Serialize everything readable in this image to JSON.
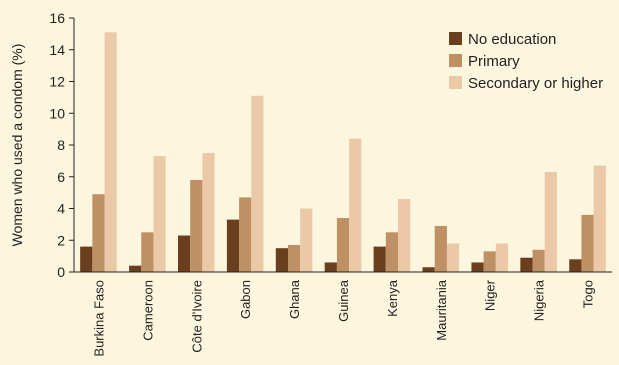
{
  "chart_data": {
    "type": "bar",
    "title": "",
    "xlabel": "",
    "ylabel": "Women who used a condom (%)",
    "ylim": [
      0,
      16
    ],
    "yticks": [
      0,
      2,
      4,
      6,
      8,
      10,
      12,
      14,
      16
    ],
    "grid": false,
    "legend_position": "top-right",
    "categories": [
      "Burkina Faso",
      "Cameroon",
      "Côte d'Ivoire",
      "Gabon",
      "Ghana",
      "Guinea",
      "Kenya",
      "Mauritania",
      "Niger",
      "Nigeria",
      "Togo"
    ],
    "series": [
      {
        "name": "No education",
        "color": "#6b3f1e",
        "values": [
          1.6,
          0.4,
          2.3,
          3.3,
          1.5,
          0.6,
          1.6,
          0.3,
          0.6,
          0.9,
          0.8
        ]
      },
      {
        "name": "Primary",
        "color": "#bf9064",
        "values": [
          4.9,
          2.5,
          5.8,
          4.7,
          1.7,
          3.4,
          2.5,
          2.9,
          1.3,
          1.4,
          3.6
        ]
      },
      {
        "name": "Secondary or higher",
        "color": "#ecc9a6",
        "values": [
          15.1,
          7.3,
          7.5,
          11.1,
          4.0,
          8.4,
          4.6,
          1.8,
          1.8,
          6.3,
          6.7
        ]
      }
    ]
  }
}
